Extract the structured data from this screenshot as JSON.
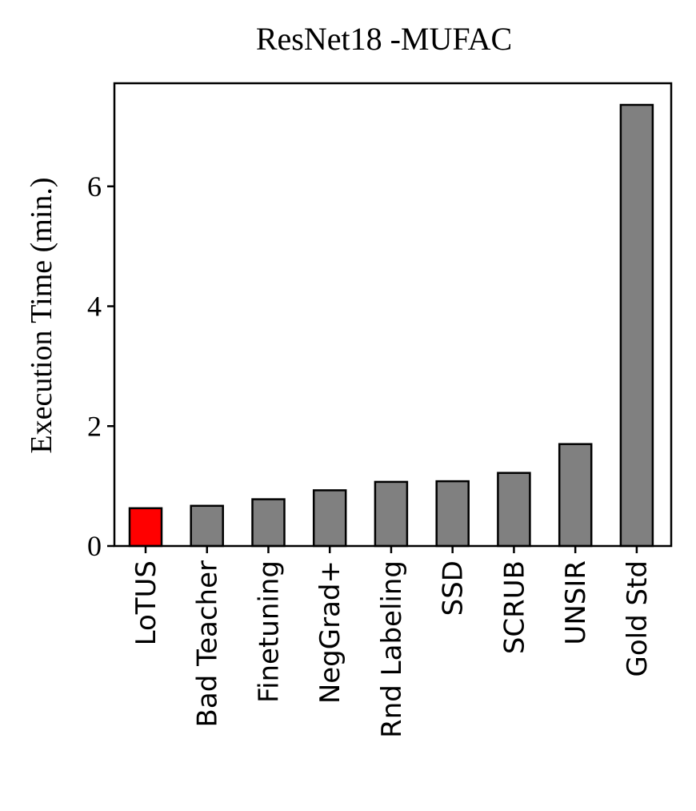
{
  "chart_data": {
    "type": "bar",
    "title": "ResNet18 -MUFAC",
    "xlabel": "",
    "ylabel": "Execution Time (min.)",
    "ylim": [
      0,
      7.72
    ],
    "yticks": [
      0,
      2,
      4,
      6
    ],
    "categories": [
      "LoTUS",
      "Bad Teacher",
      "Finetuning",
      "NegGrad+",
      "Rnd Labeling",
      "SSD",
      "SCRUB",
      "UNSIR",
      "Gold Std"
    ],
    "values": [
      0.63,
      0.67,
      0.78,
      0.93,
      1.07,
      1.08,
      1.22,
      1.7,
      7.36
    ],
    "colors": [
      "#ff0000",
      "#808080",
      "#808080",
      "#808080",
      "#808080",
      "#808080",
      "#808080",
      "#808080",
      "#808080"
    ],
    "edge_color": "#000000",
    "grid": false,
    "legend": "none"
  }
}
